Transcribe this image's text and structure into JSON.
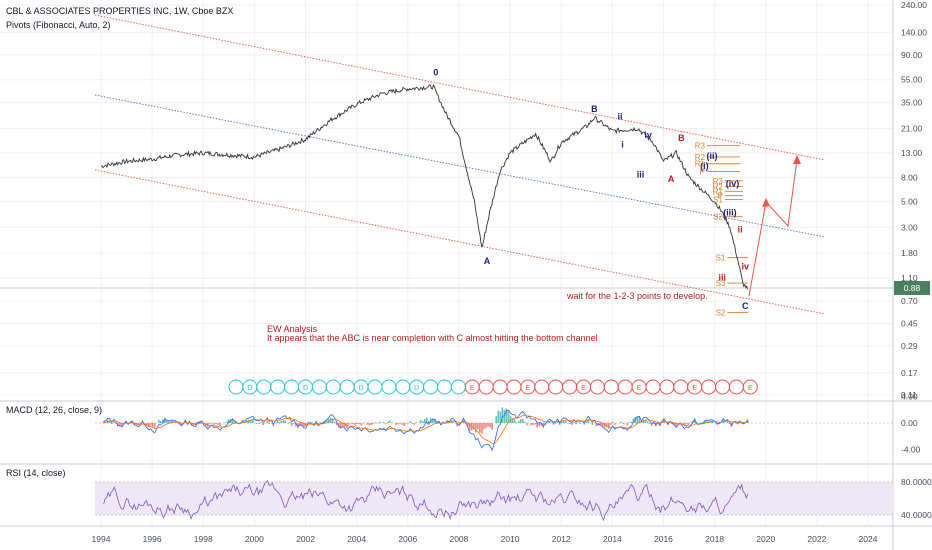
{
  "chart_data": [
    {
      "type": "line",
      "title": "CBL & ASSOCIATES PROPERTIES INC, 1W, Cboe BZX",
      "subtitle": "Pivots (Fibonacci, Auto, 2)",
      "scale": "log",
      "ylim": [
        0.1,
        240
      ],
      "y_ticks": [
        "240.00",
        "140.00",
        "90.00",
        "55.00",
        "35.00",
        "21.00",
        "13.00",
        "8.00",
        "5.00",
        "3.00",
        "1.80",
        "1.10",
        "0.70",
        "0.45",
        "0.29",
        "0.17",
        "0.11"
      ],
      "y_tick_values": [
        240,
        140,
        90,
        55,
        35,
        21,
        13,
        8,
        5,
        3,
        1.8,
        1.1,
        0.7,
        0.45,
        0.29,
        0.17,
        0.11
      ],
      "x_ticks": [
        "1994",
        "1996",
        "1998",
        "2000",
        "2002",
        "2004",
        "2006",
        "2008",
        "2010",
        "2012",
        "2014",
        "2016",
        "2018",
        "2020",
        "2022",
        "2024"
      ],
      "last_price": "0.88",
      "series": [
        {
          "x": [
            1994,
            1995,
            1996,
            1997,
            1998,
            1999,
            2000,
            2001,
            2002,
            2003,
            2004,
            2005,
            2006,
            2007,
            2007.5,
            2008,
            2008.6,
            2008.9,
            2009.2,
            2009.6,
            2010,
            2011,
            2011.6,
            2012,
            2013,
            2013.3,
            2014,
            2015,
            2015.6,
            2016,
            2016.5,
            2017,
            2017.6,
            2018,
            2018.3,
            2018.6,
            2018.9,
            2019.1,
            2019.3
          ],
          "values": [
            10,
            11,
            11.5,
            12.5,
            13,
            12.5,
            12,
            14,
            17,
            25,
            34,
            42,
            46,
            48,
            28,
            18,
            5,
            2,
            4,
            9,
            13,
            19,
            11,
            16,
            22,
            26,
            20,
            21,
            16,
            11,
            13,
            8,
            6,
            5,
            4,
            3,
            1.6,
            1,
            0.88
          ]
        }
      ],
      "elliott_labels": [
        {
          "text": "0",
          "x": 2007.1,
          "y": 60
        },
        {
          "text": "A",
          "x": 2009.1,
          "y": 1.45
        },
        {
          "text": "B",
          "x": 2013.3,
          "y": 29
        },
        {
          "text": "ii",
          "x": 2014.3,
          "y": 25
        },
        {
          "text": "i",
          "x": 2014.4,
          "y": 14.5
        },
        {
          "text": "iv",
          "x": 2015.4,
          "y": 17.5
        },
        {
          "text": "iii",
          "x": 2015.1,
          "y": 8
        },
        {
          "text": "B",
          "x": 2016.7,
          "y": 16.5
        },
        {
          "text": "A",
          "x": 2016.3,
          "y": 7.3
        },
        {
          "text": "(ii)",
          "x": 2017.9,
          "y": 11.5
        },
        {
          "text": "(i)",
          "x": 2017.6,
          "y": 9.5
        },
        {
          "text": "(iv)",
          "x": 2018.7,
          "y": 6.7
        },
        {
          "text": "(iii)",
          "x": 2018.6,
          "y": 3.8
        },
        {
          "text": "ii",
          "x": 2019.0,
          "y": 2.7
        },
        {
          "text": "iii",
          "x": 2018.3,
          "y": 1.05
        },
        {
          "text": "iv",
          "x": 2019.2,
          "y": 1.3
        },
        {
          "text": "C",
          "x": 2019.2,
          "y": 0.6
        }
      ],
      "pivot_labels": [
        {
          "text": "R3",
          "y": 15
        },
        {
          "text": "R2",
          "y": 12
        },
        {
          "text": "R1",
          "y": 10.5
        },
        {
          "text": "P",
          "y": 9
        },
        {
          "text": "R3",
          "y": 7.5
        },
        {
          "text": "R2",
          "y": 6.7
        },
        {
          "text": "R1",
          "y": 6.1
        },
        {
          "text": "S1",
          "y": 5.2
        },
        {
          "text": "P",
          "y": 5.6
        },
        {
          "text": "S2",
          "y": 3.7
        },
        {
          "text": "S1",
          "y": 1.65
        },
        {
          "text": "S3",
          "y": 1.0
        },
        {
          "text": "S2",
          "y": 0.56
        }
      ],
      "annotations": [
        "wait for the 1-2-3 points to develop.",
        "EW Analysis",
        "It appears that the ABC is near completion with C almost hitting the bottom channel"
      ],
      "event_markers": [
        "D",
        "E"
      ]
    },
    {
      "type": "line",
      "title": "MACD (12, 26, close, 9)",
      "y_ticks": [
        "4.00",
        "0.00",
        "-4.00"
      ],
      "y_tick_values": [
        4,
        0,
        -4
      ],
      "ylim": [
        -6,
        6
      ]
    },
    {
      "type": "line",
      "title": "RSI (14, close)",
      "y_ticks": [
        "80.0000",
        "40.0000"
      ],
      "y_tick_values": [
        80,
        40
      ],
      "ylim": [
        20,
        90
      ]
    }
  ],
  "colors": {
    "price": "#333333",
    "channel": "#ef5350",
    "midline": "#3f51b5",
    "wave": "#1a237e",
    "wave_red": "#b71c1c",
    "pivot": "#d9822b",
    "macd": "#2962ff",
    "signal": "#ff6d00",
    "rsi": "#7e57c2",
    "rsi_band": "#ede7f6",
    "last_price_bg": "#4c7f5e",
    "marker_d": "#26c6da",
    "marker_e": "#ef5350"
  }
}
